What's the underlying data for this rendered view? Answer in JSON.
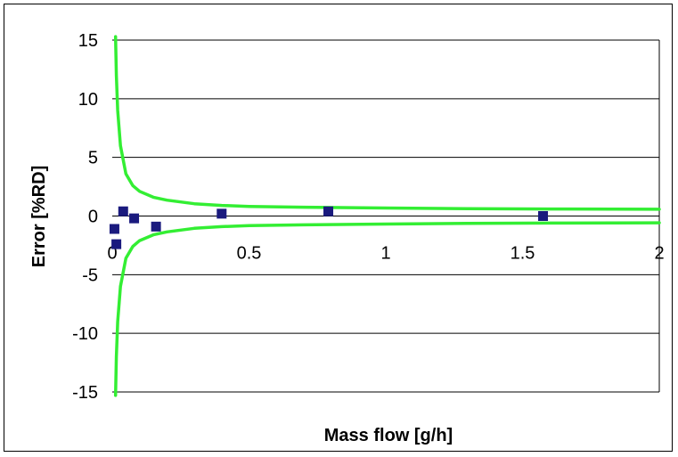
{
  "chart_data": {
    "type": "scatter",
    "title": "",
    "xlabel": "Mass flow [g/h]",
    "ylabel": "Error [%RD]",
    "xlim": [
      0,
      2
    ],
    "ylim": [
      -15,
      15
    ],
    "x_ticks": [
      "0",
      "0.5",
      "1",
      "1.5",
      "2"
    ],
    "y_ticks": [
      "15",
      "10",
      "5",
      "0",
      "-5",
      "-10",
      "-15"
    ],
    "grid": "horizontal",
    "legend": "none",
    "colors": {
      "points": "#1a1a7e",
      "bounds": "#33ee33",
      "grid": "#000000"
    },
    "series": [
      {
        "kind": "points",
        "x": [
          0.008,
          0.015,
          0.04,
          0.08,
          0.16,
          0.4,
          0.79,
          1.575
        ],
        "y": [
          -1.1,
          -2.4,
          0.4,
          -0.2,
          -0.9,
          0.2,
          0.4,
          0.0
        ]
      },
      {
        "kind": "upper-bound",
        "x": [
          0.012,
          0.015,
          0.02,
          0.03,
          0.05,
          0.075,
          0.1,
          0.15,
          0.2,
          0.3,
          0.4,
          0.5,
          0.7,
          1.0,
          1.3,
          1.6,
          2.0
        ],
        "y": [
          15.3,
          12.0,
          9.0,
          6.0,
          3.6,
          2.6,
          2.1,
          1.6,
          1.35,
          1.05,
          0.9,
          0.82,
          0.75,
          0.68,
          0.63,
          0.6,
          0.58
        ]
      },
      {
        "kind": "lower-bound",
        "x": [
          0.012,
          0.015,
          0.02,
          0.03,
          0.05,
          0.075,
          0.1,
          0.15,
          0.2,
          0.3,
          0.4,
          0.5,
          0.7,
          1.0,
          1.3,
          1.6,
          2.0
        ],
        "y": [
          -15.3,
          -12.0,
          -9.0,
          -6.0,
          -3.6,
          -2.6,
          -2.1,
          -1.6,
          -1.35,
          -1.05,
          -0.9,
          -0.82,
          -0.75,
          -0.68,
          -0.63,
          -0.6,
          -0.58
        ]
      }
    ]
  }
}
